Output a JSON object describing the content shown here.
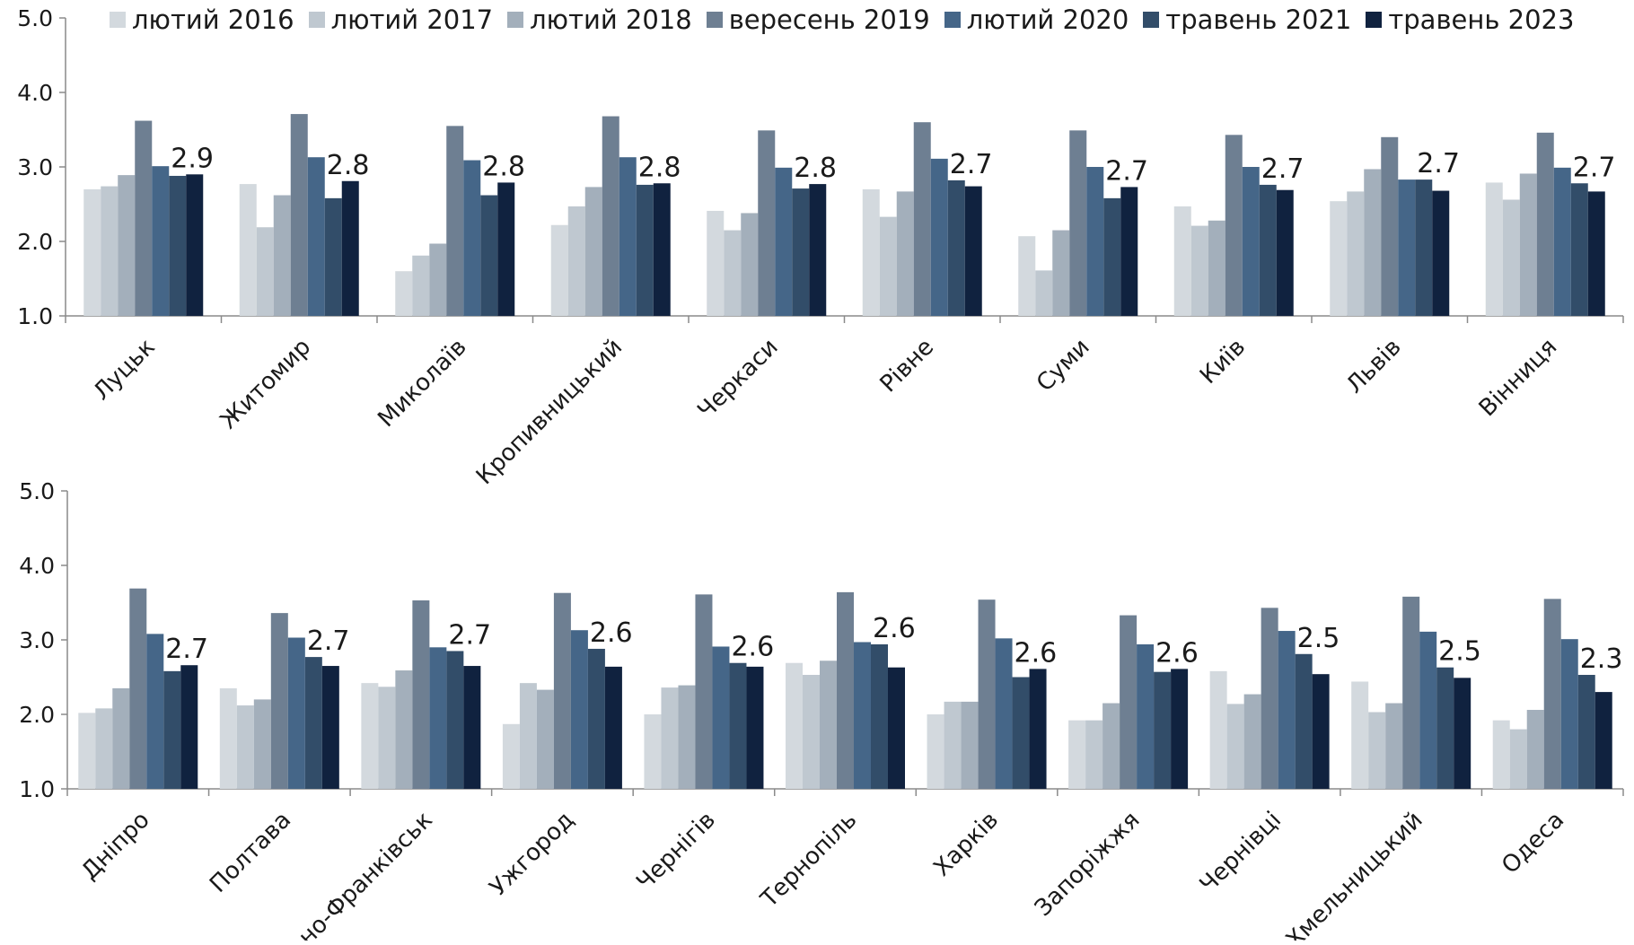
{
  "chart_data": [
    {
      "type": "bar",
      "ylim": [
        1.0,
        5.0
      ],
      "yticks": [
        "1.0",
        "2.0",
        "3.0",
        "4.0",
        "5.0"
      ],
      "legend_position": "top",
      "grid": false,
      "series": [
        {
          "name": "лютий 2016",
          "color": "#d3d9de"
        },
        {
          "name": "лютий 2017",
          "color": "#bfc8d0"
        },
        {
          "name": "лютий 2018",
          "color": "#a3afbb"
        },
        {
          "name": "вересень 2019",
          "color": "#6e7f92"
        },
        {
          "name": "лютий 2020",
          "color": "#456688"
        },
        {
          "name": "травень 2021",
          "color": "#324d69"
        },
        {
          "name": "травень 2023",
          "color": "#10223f"
        }
      ],
      "categories": [
        "Луцьк",
        "Житомир",
        "Миколаїв",
        "Кропивницький",
        "Черкаси",
        "Рівне",
        "Суми",
        "Київ",
        "Львів",
        "Вінниця"
      ],
      "values": [
        [
          2.7,
          2.74,
          2.89,
          3.62,
          3.01,
          2.88,
          2.9
        ],
        [
          2.77,
          2.19,
          2.62,
          3.71,
          3.13,
          2.58,
          2.81
        ],
        [
          1.6,
          1.81,
          1.97,
          3.55,
          3.09,
          2.62,
          2.79
        ],
        [
          2.22,
          2.47,
          2.73,
          3.68,
          3.13,
          2.76,
          2.78
        ],
        [
          2.41,
          2.15,
          2.38,
          3.49,
          2.99,
          2.71,
          2.77
        ],
        [
          2.7,
          2.33,
          2.67,
          3.6,
          3.11,
          2.82,
          2.74
        ],
        [
          2.07,
          1.61,
          2.15,
          3.49,
          3.0,
          2.58,
          2.73
        ],
        [
          2.47,
          2.21,
          2.28,
          3.43,
          3.0,
          2.76,
          2.69
        ],
        [
          2.54,
          2.67,
          2.97,
          3.4,
          2.83,
          2.83,
          2.68
        ],
        [
          2.79,
          2.56,
          2.91,
          3.46,
          2.99,
          2.78,
          2.67
        ]
      ],
      "data_labels": [
        "2.9",
        "2.8",
        "2.8",
        "2.8",
        "2.8",
        "2.7",
        "2.7",
        "2.7",
        "2.7",
        "2.7"
      ]
    },
    {
      "type": "bar",
      "ylim": [
        1.0,
        5.0
      ],
      "yticks": [
        "1.0",
        "2.0",
        "3.0",
        "4.0",
        "5.0"
      ],
      "grid": false,
      "categories": [
        "Дніпро",
        "Полтава",
        "Івано-Франківськ",
        "Ужгород",
        "Чернігів",
        "Тернопіль",
        "Харків",
        "Запоріжжя",
        "Чернівці",
        "Хмельницький",
        "Одеса"
      ],
      "values": [
        [
          2.02,
          2.08,
          2.35,
          3.69,
          3.08,
          2.58,
          2.66
        ],
        [
          2.35,
          2.12,
          2.2,
          3.36,
          3.03,
          2.77,
          2.65
        ],
        [
          2.42,
          2.37,
          2.59,
          3.53,
          2.9,
          2.85,
          2.65
        ],
        [
          1.87,
          2.42,
          2.33,
          3.63,
          3.13,
          2.88,
          2.64
        ],
        [
          2.0,
          2.36,
          2.39,
          3.61,
          2.91,
          2.69,
          2.64
        ],
        [
          2.69,
          2.53,
          2.72,
          3.64,
          2.97,
          2.94,
          2.63
        ],
        [
          2.0,
          2.17,
          2.17,
          3.54,
          3.02,
          2.5,
          2.61
        ],
        [
          1.92,
          1.92,
          2.15,
          3.33,
          2.94,
          2.57,
          2.61
        ],
        [
          2.58,
          2.14,
          2.27,
          3.43,
          3.12,
          2.81,
          2.54
        ],
        [
          2.44,
          2.03,
          2.15,
          3.58,
          3.11,
          2.63,
          2.49
        ],
        [
          1.92,
          1.8,
          2.06,
          3.55,
          3.01,
          2.53,
          2.3
        ]
      ],
      "data_labels": [
        "2.7",
        "2.7",
        "2.7",
        "2.6",
        "2.6",
        "2.6",
        "2.6",
        "2.6",
        "2.5",
        "2.5",
        "2.3"
      ]
    }
  ]
}
